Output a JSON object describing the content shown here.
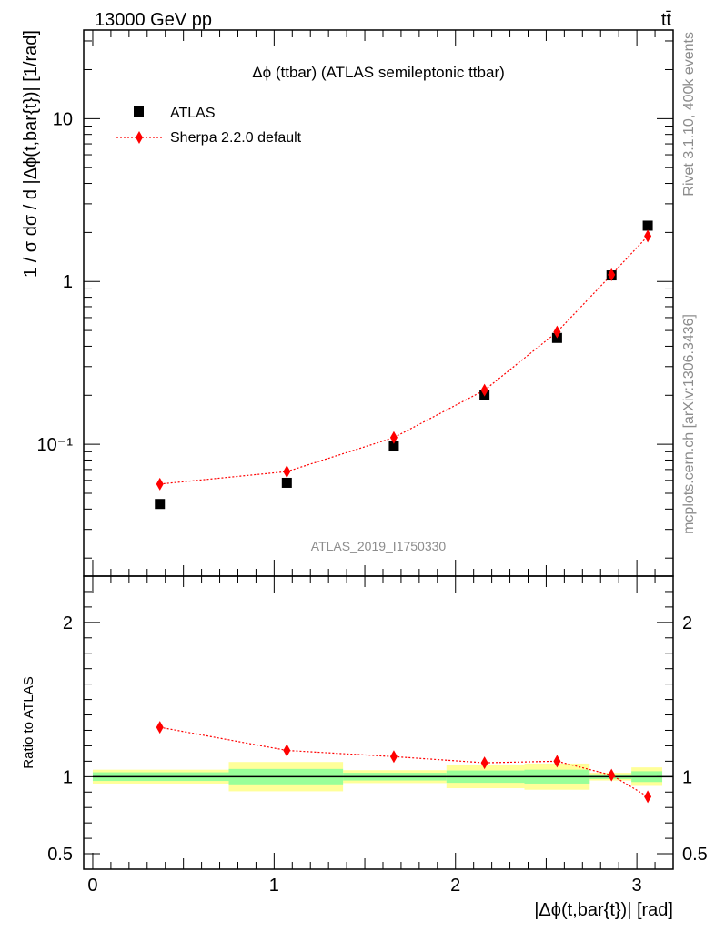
{
  "header": {
    "left": "13000 GeV pp",
    "right": "tt̄"
  },
  "side_labels": {
    "rivet": "Rivet 3.1.10,  400k events",
    "mcplots": "mcplots.cern.ch [arXiv:1306.3436]"
  },
  "chart_data": [
    {
      "type": "scatter",
      "title": "Δϕ (ttbar) (ATLAS semileptonic ttbar)",
      "watermark": "ATLAS_2019_I1750330",
      "ylabel": "1 / σ dσ / d |Δϕ(t,bar{t})| [1/rad]",
      "yscale": "log",
      "ylim": [
        0.0155,
        35
      ],
      "xlim": [
        -0.05,
        3.2
      ],
      "y_ticks": [
        {
          "value": 0.1,
          "label": "10⁻¹"
        },
        {
          "value": 1,
          "label": "1"
        },
        {
          "value": 10,
          "label": "10"
        }
      ],
      "legend_position": "top-left",
      "series": [
        {
          "name": "ATLAS",
          "marker": "square",
          "color": "#000000",
          "x": [
            0.37,
            1.07,
            1.66,
            2.16,
            2.56,
            2.86,
            3.06
          ],
          "y": [
            0.043,
            0.058,
            0.097,
            0.2,
            0.45,
            1.09,
            2.2
          ]
        },
        {
          "name": "Sherpa 2.2.0 default",
          "marker": "diamond",
          "line": "dotted",
          "color": "#ff0000",
          "x": [
            0.37,
            1.07,
            1.66,
            2.16,
            2.56,
            2.86,
            3.06
          ],
          "y": [
            0.057,
            0.068,
            0.11,
            0.215,
            0.49,
            1.1,
            1.9
          ]
        }
      ]
    },
    {
      "type": "scatter",
      "xlabel": "|Δϕ(t,bar{t})| [rad]",
      "ylabel": "Ratio to ATLAS",
      "ylim": [
        0.4,
        2.3
      ],
      "xlim": [
        -0.05,
        3.2
      ],
      "x_ticks": [
        0,
        1,
        2,
        3
      ],
      "y_ticks": [
        {
          "value": 0.5,
          "label": "0.5"
        },
        {
          "value": 1,
          "label": "1"
        },
        {
          "value": 2,
          "label": "2"
        }
      ],
      "reference_line": 1,
      "bands": [
        {
          "x0": 0.0,
          "x1": 0.75,
          "yellow": [
            0.955,
            1.045
          ],
          "green": [
            0.972,
            1.028
          ]
        },
        {
          "x0": 0.75,
          "x1": 1.38,
          "yellow": [
            0.905,
            1.095
          ],
          "green": [
            0.95,
            1.05
          ]
        },
        {
          "x0": 1.38,
          "x1": 1.95,
          "yellow": [
            0.958,
            1.042
          ],
          "green": [
            0.975,
            1.025
          ]
        },
        {
          "x0": 1.95,
          "x1": 2.38,
          "yellow": [
            0.925,
            1.075
          ],
          "green": [
            0.96,
            1.04
          ]
        },
        {
          "x0": 2.38,
          "x1": 2.74,
          "yellow": [
            0.915,
            1.085
          ],
          "green": [
            0.955,
            1.045
          ]
        },
        {
          "x0": 2.74,
          "x1": 2.97,
          "yellow": [
            0.975,
            1.025
          ],
          "green": [
            0.985,
            1.015
          ]
        },
        {
          "x0": 2.97,
          "x1": 3.14,
          "yellow": [
            0.94,
            1.06
          ],
          "green": [
            0.965,
            1.035
          ]
        }
      ],
      "series": [
        {
          "name": "Sherpa 2.2.0 default",
          "marker": "diamond",
          "line": "dotted",
          "color": "#ff0000",
          "x": [
            0.37,
            1.07,
            1.66,
            2.16,
            2.56,
            2.86,
            3.06
          ],
          "y": [
            1.32,
            1.17,
            1.13,
            1.09,
            1.1,
            1.01,
            0.87
          ]
        }
      ]
    }
  ]
}
